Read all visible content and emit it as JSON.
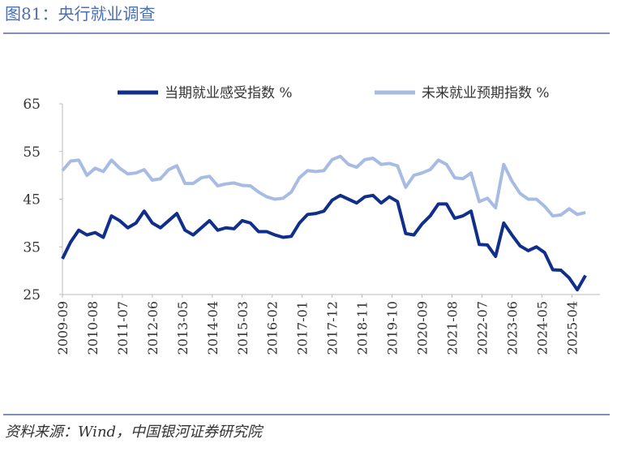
{
  "title": "图81：央行就业调查",
  "source": "资料来源：Wind，中国银河证券研究院",
  "chart_data": {
    "type": "line",
    "x": [
      "2009-09",
      "2009-12",
      "2010-03",
      "2010-06",
      "2010-09",
      "2010-12",
      "2011-03",
      "2011-06",
      "2011-09",
      "2011-12",
      "2012-03",
      "2012-06",
      "2012-09",
      "2012-12",
      "2013-03",
      "2013-06",
      "2013-09",
      "2013-12",
      "2014-03",
      "2014-06",
      "2014-09",
      "2014-12",
      "2015-03",
      "2015-06",
      "2015-09",
      "2015-12",
      "2016-03",
      "2016-06",
      "2016-09",
      "2016-12",
      "2017-03",
      "2017-06",
      "2017-09",
      "2017-12",
      "2018-03",
      "2018-06",
      "2018-09",
      "2018-12",
      "2019-03",
      "2019-06",
      "2019-09",
      "2019-12",
      "2020-03",
      "2020-06",
      "2020-09",
      "2020-12",
      "2021-03",
      "2021-06",
      "2021-09",
      "2021-12",
      "2022-03",
      "2022-06",
      "2022-09",
      "2022-12",
      "2023-03",
      "2023-06",
      "2023-09",
      "2023-12",
      "2024-03",
      "2024-06",
      "2024-09",
      "2024-12",
      "2025-03",
      "2025-06",
      "2025-09"
    ],
    "series": [
      {
        "name": "当期就业感受指数 %",
        "color": "#0f2f8a",
        "values": [
          32.5,
          36,
          38.5,
          37.5,
          38,
          37,
          41.5,
          40.5,
          39,
          40,
          42.5,
          40,
          39,
          40.5,
          42,
          38.5,
          37.5,
          39,
          40.5,
          38.5,
          39,
          38.8,
          40.5,
          40,
          38.2,
          38.2,
          37.5,
          37,
          37.2,
          40,
          41.8,
          42,
          42.5,
          44.8,
          45.8,
          45,
          44.2,
          45.5,
          45.8,
          44.2,
          45.5,
          44.5,
          37.8,
          37.5,
          39.8,
          41.5,
          44,
          44,
          41,
          41.5,
          42.5,
          35.5,
          35.4,
          33,
          40,
          37.5,
          35.2,
          34.2,
          35,
          33.8,
          30.2,
          30.1,
          28.5,
          26,
          29
        ]
      },
      {
        "name": "未来就业预期指数 %",
        "color": "#a8bce3",
        "values": [
          51,
          53,
          53.2,
          50,
          51.5,
          50.8,
          53.2,
          51.5,
          50.3,
          50.5,
          51.2,
          49,
          49.3,
          51.2,
          52,
          48.3,
          48.3,
          49.5,
          49.8,
          47.8,
          48.2,
          48.4,
          47.9,
          47.8,
          46.5,
          45.5,
          45,
          45.2,
          46.5,
          49.5,
          51,
          50.8,
          51,
          53.3,
          54,
          52.3,
          51.7,
          53.3,
          53.6,
          52.3,
          52.5,
          52,
          47.5,
          50,
          50.5,
          51.2,
          53.2,
          52.3,
          49.5,
          49.3,
          50.5,
          44.5,
          45.2,
          43.2,
          52.3,
          48.8,
          46.2,
          45,
          45,
          43.5,
          41.5,
          41.7,
          43,
          41.8,
          42.2
        ]
      }
    ],
    "xticks": [
      "2009-09",
      "2010-08",
      "2011-07",
      "2012-06",
      "2013-05",
      "2014-04",
      "2015-03",
      "2016-02",
      "2017-01",
      "2017-12",
      "2018-11",
      "2019-10",
      "2020-09",
      "2021-08",
      "2022-07",
      "2023-06",
      "2024-05",
      "2025-04"
    ],
    "ylim": [
      25,
      65
    ],
    "yticks": [
      25,
      35,
      45,
      55,
      65
    ],
    "grid": false
  }
}
